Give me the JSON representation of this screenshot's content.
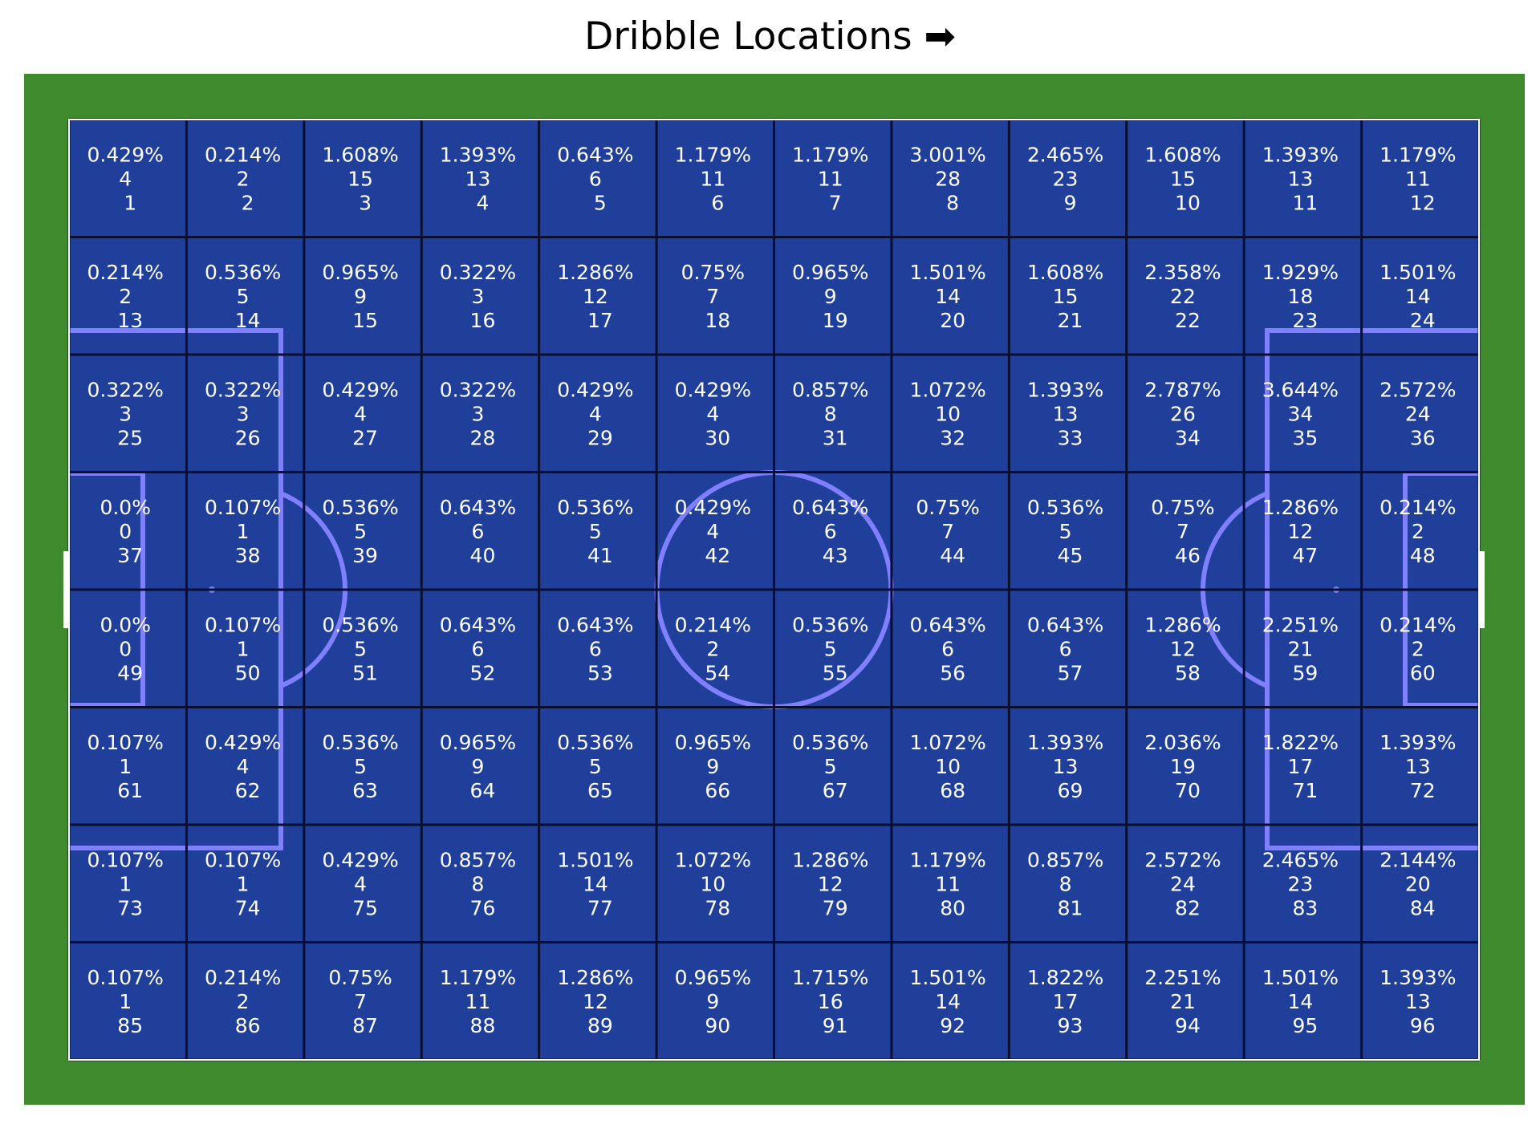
{
  "title": "Dribble Locations ➡",
  "colors": {
    "grass": "#3f8a2c",
    "pitch_lines": "#ffffff",
    "cell_fill": "#1f3f9a",
    "grid_lines": "#0a0f2e",
    "pitch_markings": "#8080ff",
    "cell_text": "#ffffff"
  },
  "chart_data": {
    "type": "heatmap",
    "title": "Dribble Locations ➡",
    "rows": 8,
    "cols": 12,
    "cell_label_order": [
      "percent",
      "count",
      "zone"
    ],
    "percents": [
      [
        "0.429%",
        "0.214%",
        "1.608%",
        "1.393%",
        "0.643%",
        "1.179%",
        "1.179%",
        "3.001%",
        "2.465%",
        "1.608%",
        "1.393%",
        "1.179%"
      ],
      [
        "0.214%",
        "0.536%",
        "0.965%",
        "0.322%",
        "1.286%",
        "0.75%",
        "0.965%",
        "1.501%",
        "1.608%",
        "2.358%",
        "1.929%",
        "1.501%"
      ],
      [
        "0.322%",
        "0.322%",
        "0.429%",
        "0.322%",
        "0.429%",
        "0.429%",
        "0.857%",
        "1.072%",
        "1.393%",
        "2.787%",
        "3.644%",
        "2.572%"
      ],
      [
        "0.0%",
        "0.107%",
        "0.536%",
        "0.643%",
        "0.536%",
        "0.429%",
        "0.643%",
        "0.75%",
        "0.536%",
        "0.75%",
        "1.286%",
        "0.214%"
      ],
      [
        "0.0%",
        "0.107%",
        "0.536%",
        "0.643%",
        "0.643%",
        "0.214%",
        "0.536%",
        "0.643%",
        "0.643%",
        "1.286%",
        "2.251%",
        "0.214%"
      ],
      [
        "0.107%",
        "0.429%",
        "0.536%",
        "0.965%",
        "0.536%",
        "0.965%",
        "0.536%",
        "1.072%",
        "1.393%",
        "2.036%",
        "1.822%",
        "1.393%"
      ],
      [
        "0.107%",
        "0.107%",
        "0.429%",
        "0.857%",
        "1.501%",
        "1.072%",
        "1.286%",
        "1.179%",
        "0.857%",
        "2.572%",
        "2.465%",
        "2.144%"
      ],
      [
        "0.107%",
        "0.214%",
        "0.75%",
        "1.179%",
        "1.286%",
        "0.965%",
        "1.715%",
        "1.501%",
        "1.822%",
        "2.251%",
        "1.501%",
        "1.393%"
      ]
    ],
    "counts": [
      [
        4,
        2,
        15,
        13,
        6,
        11,
        11,
        28,
        23,
        15,
        13,
        11
      ],
      [
        2,
        5,
        9,
        3,
        12,
        7,
        9,
        14,
        15,
        22,
        18,
        14
      ],
      [
        3,
        3,
        4,
        3,
        4,
        4,
        8,
        10,
        13,
        26,
        34,
        24
      ],
      [
        0,
        1,
        5,
        6,
        5,
        4,
        6,
        7,
        5,
        7,
        12,
        2
      ],
      [
        0,
        1,
        5,
        6,
        6,
        2,
        5,
        6,
        6,
        12,
        21,
        2
      ],
      [
        1,
        4,
        5,
        9,
        5,
        9,
        5,
        10,
        13,
        19,
        17,
        13
      ],
      [
        1,
        1,
        4,
        8,
        14,
        10,
        12,
        11,
        8,
        24,
        23,
        20
      ],
      [
        1,
        2,
        7,
        11,
        12,
        9,
        16,
        14,
        17,
        21,
        14,
        13
      ]
    ],
    "zones": [
      [
        1,
        2,
        3,
        4,
        5,
        6,
        7,
        8,
        9,
        10,
        11,
        12
      ],
      [
        13,
        14,
        15,
        16,
        17,
        18,
        19,
        20,
        21,
        22,
        23,
        24
      ],
      [
        25,
        26,
        27,
        28,
        29,
        30,
        31,
        32,
        33,
        34,
        35,
        36
      ],
      [
        37,
        38,
        39,
        40,
        41,
        42,
        43,
        44,
        45,
        46,
        47,
        48
      ],
      [
        49,
        50,
        51,
        52,
        53,
        54,
        55,
        56,
        57,
        58,
        59,
        60
      ],
      [
        61,
        62,
        63,
        64,
        65,
        66,
        67,
        68,
        69,
        70,
        71,
        72
      ],
      [
        73,
        74,
        75,
        76,
        77,
        78,
        79,
        80,
        81,
        82,
        83,
        84
      ],
      [
        85,
        86,
        87,
        88,
        89,
        90,
        91,
        92,
        93,
        94,
        95,
        96
      ]
    ],
    "grid": true,
    "legend": "none"
  }
}
